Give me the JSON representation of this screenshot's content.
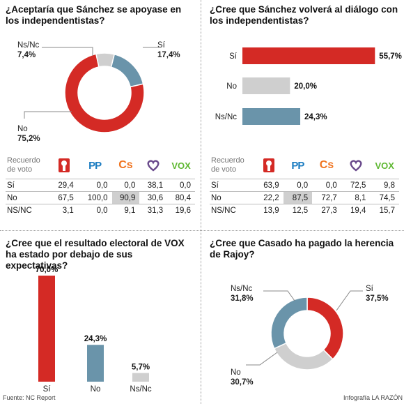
{
  "colors": {
    "red": "#d42a25",
    "gray": "#cfcfcf",
    "blue": "#6a94aa"
  },
  "table_header": "Recuerdo de voto",
  "party_icons": [
    "psoe-logo",
    "pp-logo",
    "cs-logo",
    "podemos-logo",
    "vox-logo"
  ],
  "party_marks": {
    "pp": "PP",
    "cs": "Cs",
    "vox": "VOX"
  },
  "source": "Fuente: NC Report",
  "credit": "Infografía LA RAZÓN",
  "chart_data": [
    {
      "type": "pie",
      "title": "¿Aceptaría que Sánchez se apoyase en los independentistas?",
      "categories": [
        "Sí",
        "No",
        "Ns/Nc"
      ],
      "labels": [
        "17,4%",
        "75,2%",
        "7,4%"
      ],
      "values": [
        17.4,
        75.2,
        7.4
      ],
      "colors": [
        "#6a94aa",
        "#d42a25",
        "#cfcfcf"
      ],
      "table": {
        "rows": [
          {
            "label": "Sí",
            "values": [
              "29,4",
              "0,0",
              "0,0",
              "38,1",
              "0,0"
            ]
          },
          {
            "label": "No",
            "values": [
              "67,5",
              "100,0",
              "90,9",
              "30,6",
              "80,4"
            ]
          },
          {
            "label": "NS/NC",
            "values": [
              "3,1",
              "0,0",
              "9,1",
              "31,3",
              "19,6"
            ]
          }
        ],
        "highlight": [
          1,
          2
        ]
      }
    },
    {
      "type": "bar",
      "orientation": "horizontal",
      "title": "¿Cree que Sánchez volverá al diálogo con los independentistas?",
      "categories": [
        "Sí",
        "No",
        "Ns/Nc"
      ],
      "labels": [
        "55,7%",
        "20,0%",
        "24,3%"
      ],
      "values": [
        55.7,
        20.0,
        24.3
      ],
      "colors": [
        "#d42a25",
        "#cfcfcf",
        "#6a94aa"
      ],
      "table": {
        "rows": [
          {
            "label": "Sí",
            "values": [
              "63,9",
              "0,0",
              "0,0",
              "72,5",
              "9,8"
            ]
          },
          {
            "label": "No",
            "values": [
              "22,2",
              "87,5",
              "72,7",
              "8,1",
              "74,5"
            ]
          },
          {
            "label": "NS/NC",
            "values": [
              "13,9",
              "12,5",
              "27,3",
              "19,4",
              "15,7"
            ]
          }
        ],
        "highlight": [
          1,
          1
        ]
      }
    },
    {
      "type": "bar",
      "orientation": "vertical",
      "title": "¿Cree que el resultado electoral de VOX ha estado por debajo de sus expectativas?",
      "categories": [
        "Sí",
        "No",
        "Ns/Nc"
      ],
      "labels": [
        "70,0%",
        "24,3%",
        "5,7%"
      ],
      "values": [
        70.0,
        24.3,
        5.7
      ],
      "colors": [
        "#d42a25",
        "#6a94aa",
        "#cfcfcf"
      ]
    },
    {
      "type": "pie",
      "title": "¿Cree que Casado ha pagado la herencia de Rajoy?",
      "categories": [
        "Sí",
        "No",
        "Ns/Nc"
      ],
      "labels": [
        "37,5%",
        "30,7%",
        "31,8%"
      ],
      "values": [
        37.5,
        30.7,
        31.8
      ],
      "colors": [
        "#d42a25",
        "#cfcfcf",
        "#6a94aa"
      ]
    }
  ]
}
